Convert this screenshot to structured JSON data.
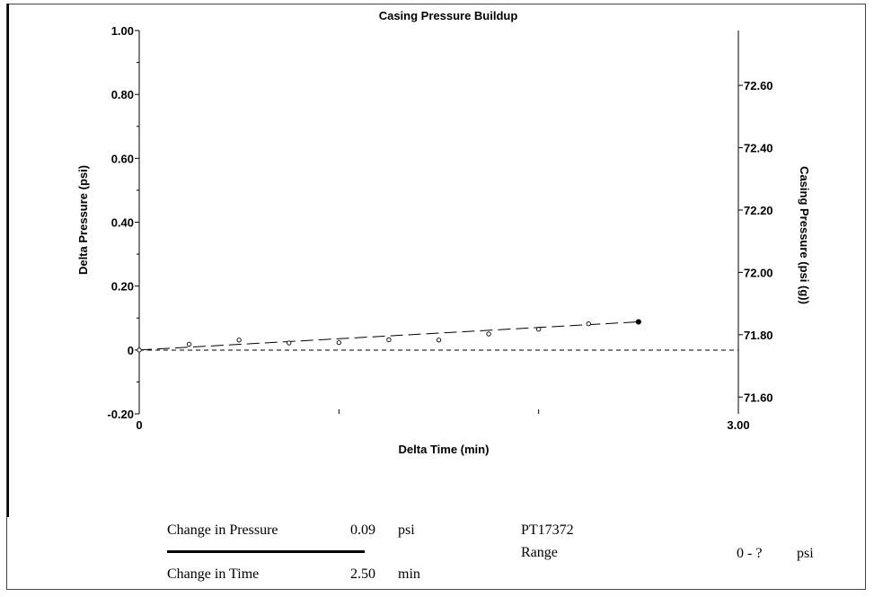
{
  "chart_data": {
    "type": "scatter",
    "title": "Casing Pressure Buildup",
    "xlabel": "Delta Time (min)",
    "ylabel": "Delta Pressure (psi)",
    "y2label": "Casing Pressure (psi (g))",
    "xlim": [
      0,
      3.0
    ],
    "ylim": [
      -0.2,
      1.0
    ],
    "y2lim": [
      71.546,
      72.776
    ],
    "x_tick_labels": [
      "0",
      "3.00"
    ],
    "y_tick_values": [
      -0.2,
      0,
      0.2,
      0.4,
      0.6,
      0.8,
      1.0
    ],
    "y_tick_labels": [
      "-0.20",
      "0",
      "0.20",
      "0.40",
      "0.60",
      "0.80",
      "1.00"
    ],
    "y2_tick_values": [
      71.6,
      71.8,
      72.0,
      72.2,
      72.4,
      72.6
    ],
    "y2_tick_labels": [
      "71.60",
      "71.80",
      "72.00",
      "72.20",
      "72.40",
      "72.60"
    ],
    "series": [
      {
        "x": [
          0,
          0.25,
          0.5,
          0.75,
          1.0,
          1.25,
          1.5,
          1.75,
          2.0,
          2.25,
          2.5
        ],
        "y": [
          0.0,
          0.018,
          0.031,
          0.022,
          0.023,
          0.032,
          0.031,
          0.05,
          0.065,
          0.082,
          0.088
        ]
      }
    ],
    "fit_line": {
      "x": [
        0,
        2.5
      ],
      "y": [
        0.0,
        0.088
      ]
    },
    "baseline_y": 0
  },
  "footer": {
    "change_pressure_label": "Change in Pressure",
    "change_pressure_value": "0.09",
    "change_pressure_unit": "psi",
    "change_time_label": "Change in Time",
    "change_time_value": "2.50",
    "change_time_unit": "min",
    "gauge_id": "PT17372",
    "range_label": "Range",
    "range_value": "0 - ?",
    "range_unit": "psi"
  }
}
